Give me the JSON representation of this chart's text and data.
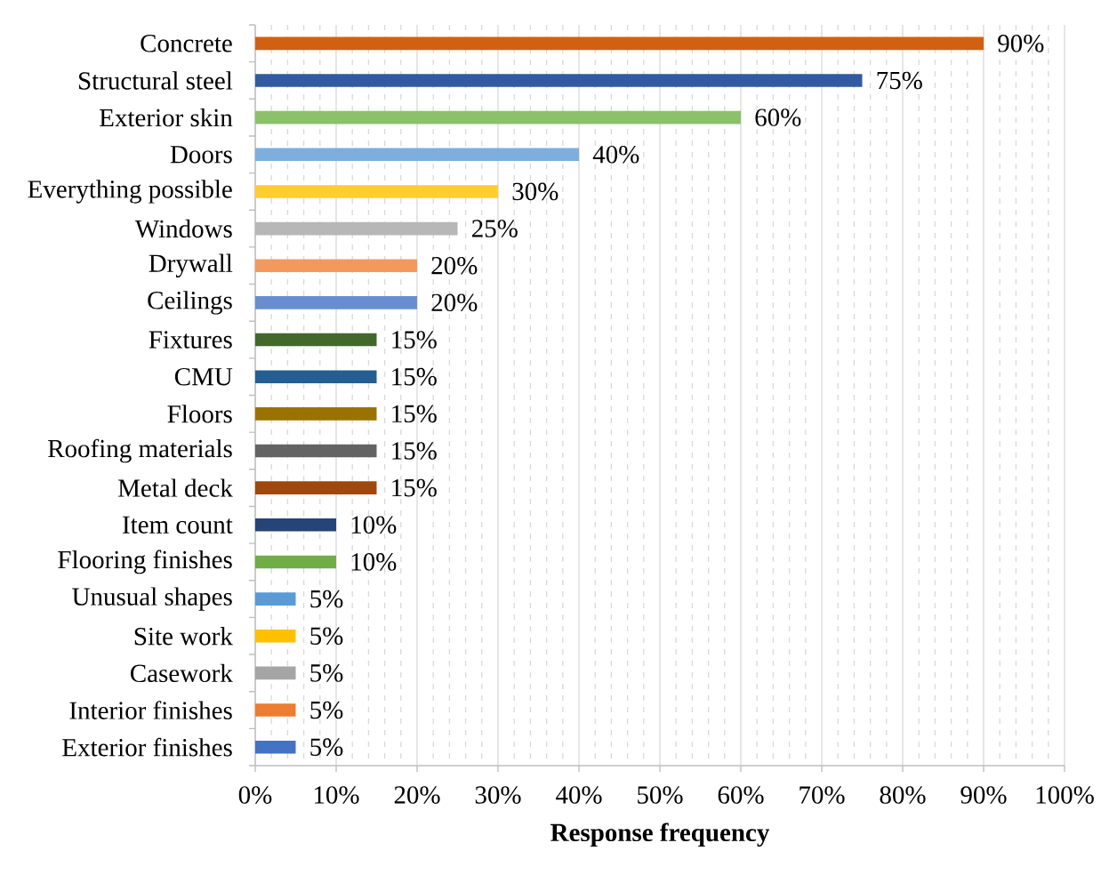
{
  "chart_data": {
    "type": "bar",
    "orientation": "horizontal",
    "categories": [
      "Concrete",
      "Structural steel",
      "Exterior skin",
      "Doors",
      "Everything possible",
      "Windows",
      "Drywall",
      "Ceilings",
      "Fixtures",
      "CMU",
      "Floors",
      "Roofing materials",
      "Metal deck",
      "Item count",
      "Flooring finishes",
      "Unusual shapes",
      "Site work",
      "Casework",
      "Interior finishes",
      "Exterior finishes"
    ],
    "values": [
      90,
      75,
      60,
      40,
      30,
      25,
      20,
      20,
      15,
      15,
      15,
      15,
      15,
      10,
      10,
      5,
      5,
      5,
      5,
      5
    ],
    "value_labels": [
      "90%",
      "75%",
      "60%",
      "40%",
      "30%",
      "25%",
      "20%",
      "20%",
      "15%",
      "15%",
      "15%",
      "15%",
      "15%",
      "10%",
      "10%",
      "5%",
      "5%",
      "5%",
      "5%",
      "5%"
    ],
    "colors": [
      "#d26012",
      "#325aa0",
      "#8bc168",
      "#7daede",
      "#ffcd33",
      "#b7b7b7",
      "#f29a5e",
      "#698ed0",
      "#43682b",
      "#255e91",
      "#997300",
      "#636363",
      "#9e480e",
      "#264478",
      "#70ad47",
      "#5b9bd5",
      "#ffc000",
      "#a5a5a5",
      "#ed7d31",
      "#4472c4"
    ],
    "xlim": [
      0,
      100
    ],
    "xticks": [
      {
        "value": 0,
        "label": "0%"
      },
      {
        "value": 10,
        "label": "10%"
      },
      {
        "value": 20,
        "label": "20%"
      },
      {
        "value": 30,
        "label": "30%"
      },
      {
        "value": 40,
        "label": "40%"
      },
      {
        "value": 50,
        "label": "50%"
      },
      {
        "value": 60,
        "label": "60%"
      },
      {
        "value": 70,
        "label": "70%"
      },
      {
        "value": 80,
        "label": "80%"
      },
      {
        "value": 90,
        "label": "90%"
      },
      {
        "value": 100,
        "label": "100%"
      }
    ],
    "xlabel": "Response frequency",
    "grid": "x"
  }
}
